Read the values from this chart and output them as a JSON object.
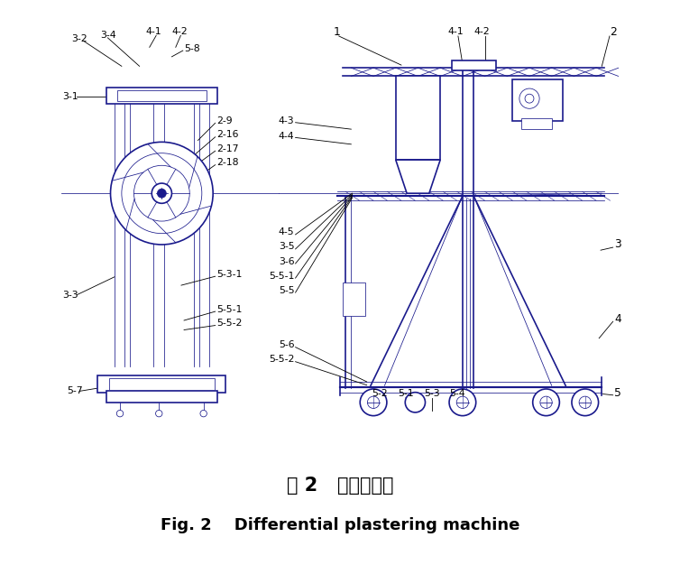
{
  "title_cn": "图 2   差动抹灰机",
  "title_en": "Fig. 2    Differential plastering machine",
  "title_cn_fontsize": 15,
  "title_en_fontsize": 13,
  "bg_color": "#ffffff",
  "fig_width": 7.54,
  "fig_height": 6.26,
  "dpi": 100,
  "blue": "#1a1a8c",
  "black": "#000000"
}
